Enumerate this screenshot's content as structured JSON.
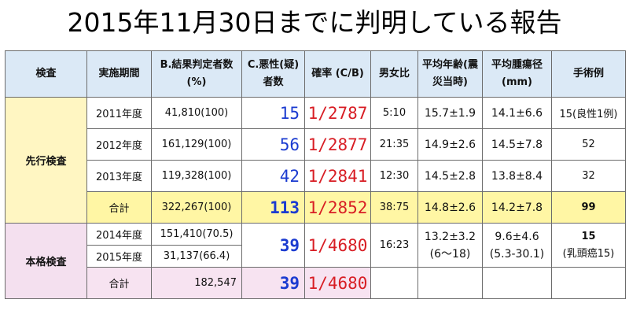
{
  "title": "2015年11月30日までに判明している報告",
  "headers": {
    "inspection": "検査",
    "period": "実施期間",
    "b_line1": "B.結果判定者数",
    "b_line2": "(%)",
    "c_line1": "C.悪性(疑)",
    "c_line2": "者数",
    "rate": "確率 (C/B)",
    "sex_ratio": "男女比",
    "age_line1": "平均年齢(震",
    "age_line2": "災当時)",
    "tumor_line1": "平均腫瘍径",
    "tumor_line2": "(mm)",
    "surgery": "手術例"
  },
  "preliminary": {
    "label": "先行検査",
    "rows": [
      {
        "period": "2011年度",
        "b": "41,810(100)",
        "c": "15",
        "rate": "1/2787",
        "sex": "5:10",
        "age": "15.7±1.9",
        "tumor": "14.1±6.6",
        "surgery": "15(良性1例)"
      },
      {
        "period": "2012年度",
        "b": "161,129(100)",
        "c": "56",
        "rate": "1/2877",
        "sex": "21:35",
        "age": "14.9±2.6",
        "tumor": "14.5±7.8",
        "surgery": "52"
      },
      {
        "period": "2013年度",
        "b": "119,328(100)",
        "c": "42",
        "rate": "1/2841",
        "sex": "12:30",
        "age": "14.5±2.8",
        "tumor": "13.8±8.4",
        "surgery": "32"
      }
    ],
    "total": {
      "label": "合計",
      "b": "322,267(100)",
      "c": "113",
      "rate": "1/2852",
      "sex": "38:75",
      "age": "14.8±2.6",
      "tumor": "14.2±7.8",
      "surgery": "99"
    }
  },
  "full_scale": {
    "label": "本格検査",
    "rows": [
      {
        "period": "2014年度",
        "b": "151,410(70.5)"
      },
      {
        "period": "2015年度",
        "b": "31,137(66.4)"
      }
    ],
    "merged": {
      "c": "39",
      "rate": "1/4680",
      "sex": "16:23",
      "age_mean": "13.2±3.2",
      "age_range": "(6～18)",
      "tumor_mean": "9.6±4.6",
      "tumor_range": "(5.3-30.1)",
      "surgery_count": "15",
      "surgery_note": "(乳頭癌15)"
    },
    "total": {
      "label": "合計",
      "b": "182,547",
      "c": "39",
      "rate": "1/4680"
    }
  }
}
